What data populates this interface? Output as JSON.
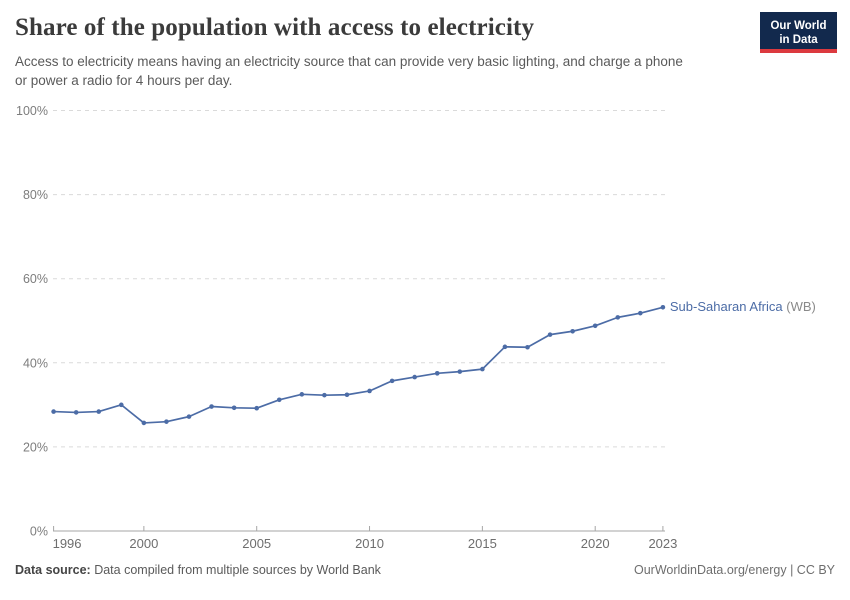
{
  "header": {
    "title": "Share of the population with access to electricity",
    "subtitle_lines": [
      "Access to electricity means having an electricity source that can provide very basic lighting, and charge a phone",
      "or power a radio for 4 hours per day."
    ]
  },
  "logo": {
    "line1": "Our World",
    "line2": "in Data",
    "bg_color": "#12294d",
    "accent_color": "#dc3a3f"
  },
  "chart_data": {
    "type": "line",
    "title": "Share of the population with access to electricity",
    "unit": "%",
    "x": [
      1996,
      1997,
      1998,
      1999,
      2000,
      2001,
      2002,
      2003,
      2004,
      2005,
      2006,
      2007,
      2008,
      2009,
      2010,
      2011,
      2012,
      2013,
      2014,
      2015,
      2016,
      2017,
      2018,
      2019,
      2020,
      2021,
      2022,
      2023
    ],
    "series": [
      {
        "name": "Sub-Saharan Africa (WB)",
        "color": "#4c6ca6",
        "values": [
          28.4,
          28.2,
          28.4,
          30.0,
          25.7,
          26.0,
          27.2,
          29.6,
          29.3,
          29.2,
          31.2,
          32.5,
          32.3,
          32.4,
          33.3,
          35.7,
          36.6,
          37.5,
          37.9,
          38.5,
          43.8,
          43.7,
          46.7,
          47.5,
          48.8,
          50.8,
          51.8,
          53.2
        ]
      }
    ],
    "xlim": [
      1996,
      2023
    ],
    "ylim": [
      0,
      100
    ],
    "xticks": [
      1996,
      2000,
      2005,
      2010,
      2015,
      2020,
      2023
    ],
    "xtick_labels": [
      "1996",
      "2000",
      "2005",
      "2010",
      "2015",
      "2020",
      "2023"
    ],
    "yticks": [
      0,
      20,
      40,
      60,
      80,
      100
    ],
    "ytick_labels": [
      "0%",
      "20%",
      "40%",
      "60%",
      "80%",
      "100%"
    ],
    "grid": "horizontal dashed",
    "legend_position": "line end label",
    "xlabel": "",
    "ylabel": ""
  },
  "series_label": {
    "name": "Sub-Saharan Africa",
    "suffix": " (WB)",
    "name_color": "#4c6ca6",
    "suffix_color": "#8a8a8a"
  },
  "footer": {
    "source_label": "Data source:",
    "source_text": " Data compiled from multiple sources by World Bank",
    "credit": "OurWorldinData.org/energy | CC BY"
  },
  "colors": {
    "line": "#4c6ca6",
    "gridline": "#dadada",
    "axis": "#a6a6a6",
    "tick_label": "#7d7d7d",
    "title": "#3b3b3b",
    "subtitle": "#5a5a5a"
  }
}
